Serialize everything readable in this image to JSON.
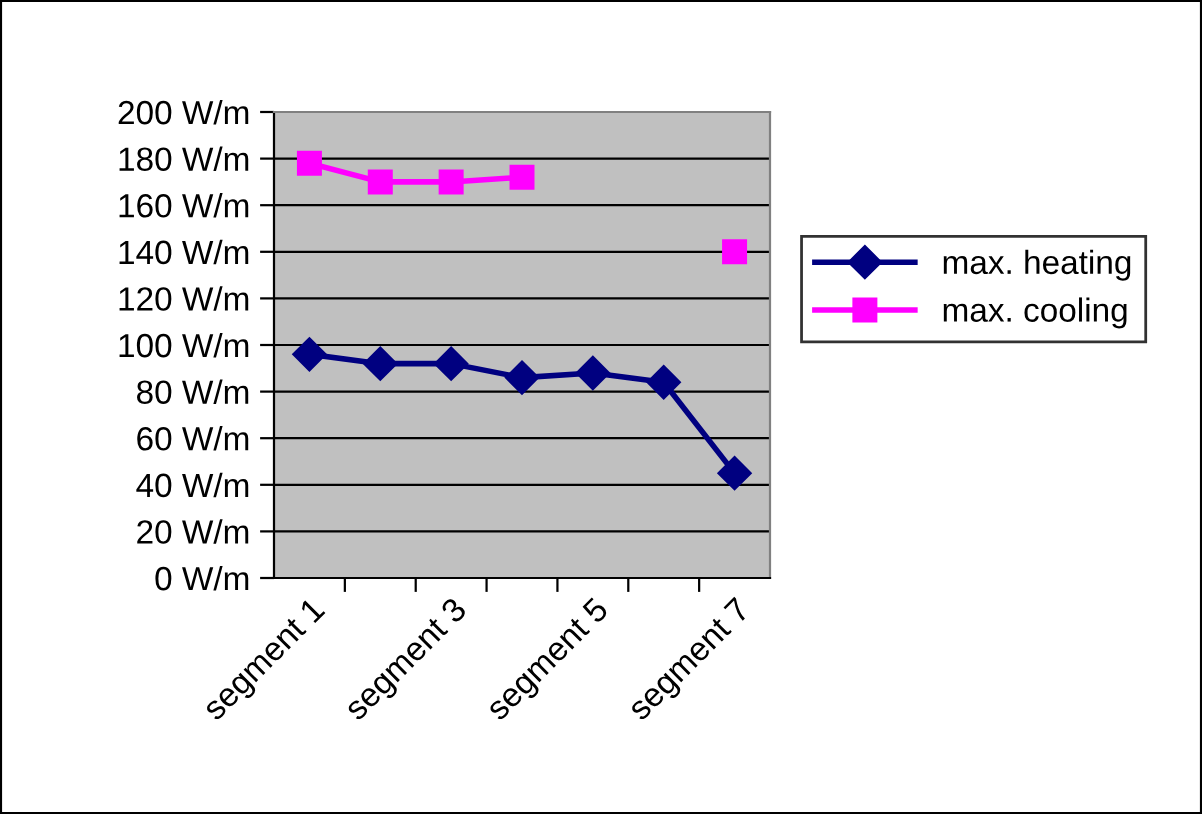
{
  "chart_data": {
    "type": "line",
    "categories": [
      "segment 1",
      null,
      "segment 3",
      null,
      "segment 5",
      null,
      "segment 7"
    ],
    "series": [
      {
        "name": "max. heating",
        "color": "#000080",
        "marker": "diamond",
        "values": [
          96,
          92,
          92,
          86,
          88,
          84,
          45
        ]
      },
      {
        "name": "max. cooling",
        "color": "#ff00ff",
        "marker": "square",
        "values": [
          178,
          170,
          170,
          172,
          null,
          null,
          140
        ]
      }
    ],
    "ylim": [
      0,
      200
    ],
    "yticks": [
      {
        "value": 0,
        "label": "0 W/m"
      },
      {
        "value": 20,
        "label": "20 W/m"
      },
      {
        "value": 40,
        "label": "40 W/m"
      },
      {
        "value": 60,
        "label": "60 W/m"
      },
      {
        "value": 80,
        "label": "80 W/m"
      },
      {
        "value": 100,
        "label": "100 W/m"
      },
      {
        "value": 120,
        "label": "120 W/m"
      },
      {
        "value": 140,
        "label": "140 W/m"
      },
      {
        "value": 160,
        "label": "160 W/m"
      },
      {
        "value": 180,
        "label": "180 W/m"
      },
      {
        "value": 200,
        "label": "200 W/m"
      }
    ],
    "grid": "y",
    "legend": "right",
    "line_style": "solid"
  }
}
